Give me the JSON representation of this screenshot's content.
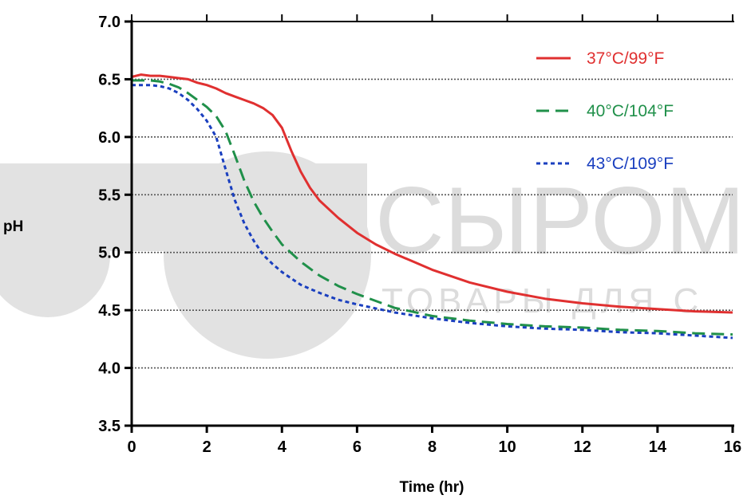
{
  "watermark": {
    "big_text": "СЫРОМ",
    "small_text": "ТОВАРЫ ДЛЯ С"
  },
  "chart_data": {
    "type": "line",
    "title": "",
    "xlabel": "Time (hr)",
    "ylabel": "pH",
    "xlim": [
      0,
      16
    ],
    "ylim": [
      3.5,
      7.0
    ],
    "x_ticks": [
      0,
      2,
      4,
      6,
      8,
      10,
      12,
      14,
      16
    ],
    "y_ticks": [
      3.5,
      4.0,
      4.5,
      5.0,
      5.5,
      6.0,
      6.5,
      7.0
    ],
    "x_tick_labels": [
      "0",
      "2",
      "4",
      "6",
      "8",
      "10",
      "12",
      "14",
      "16"
    ],
    "y_tick_labels": [
      "3.5",
      "4.0",
      "4.5",
      "5.0",
      "5.5",
      "6.0",
      "6.5",
      "7.0"
    ],
    "grid": "horizontal dotted",
    "legend_position": "top-right",
    "series": [
      {
        "name": "37°C/99°F",
        "color": "#e03030",
        "dash": "solid",
        "x": [
          0,
          0.25,
          0.5,
          0.75,
          1.0,
          1.25,
          1.5,
          1.75,
          2.0,
          2.25,
          2.5,
          2.75,
          3.0,
          3.25,
          3.5,
          3.75,
          4.0,
          4.25,
          4.5,
          4.75,
          5.0,
          5.5,
          6.0,
          6.5,
          7.0,
          7.5,
          8.0,
          9.0,
          10.0,
          11.0,
          12.0,
          13.0,
          14.0,
          15.0,
          16.0
        ],
        "y": [
          6.52,
          6.54,
          6.53,
          6.53,
          6.52,
          6.51,
          6.5,
          6.47,
          6.45,
          6.42,
          6.38,
          6.35,
          6.32,
          6.29,
          6.25,
          6.19,
          6.08,
          5.88,
          5.7,
          5.56,
          5.45,
          5.3,
          5.17,
          5.07,
          4.99,
          4.92,
          4.85,
          4.74,
          4.66,
          4.6,
          4.56,
          4.53,
          4.51,
          4.49,
          4.48
        ]
      },
      {
        "name": "40°C/104°F",
        "color": "#20904a",
        "dash": "dashed",
        "x": [
          0,
          0.25,
          0.5,
          0.75,
          1.0,
          1.25,
          1.5,
          1.75,
          2.0,
          2.25,
          2.5,
          2.75,
          3.0,
          3.25,
          3.5,
          3.75,
          4.0,
          4.5,
          5.0,
          5.5,
          6.0,
          7.0,
          8.0,
          9.0,
          10.0,
          11.0,
          12.0,
          13.0,
          14.0,
          15.0,
          16.0
        ],
        "y": [
          6.49,
          6.49,
          6.49,
          6.48,
          6.46,
          6.43,
          6.38,
          6.32,
          6.26,
          6.18,
          6.05,
          5.84,
          5.62,
          5.44,
          5.3,
          5.18,
          5.07,
          4.92,
          4.8,
          4.71,
          4.64,
          4.52,
          4.45,
          4.41,
          4.38,
          4.36,
          4.35,
          4.33,
          4.32,
          4.3,
          4.29
        ]
      },
      {
        "name": "43°C/109°F",
        "color": "#1a3fbf",
        "dash": "dotted",
        "x": [
          0,
          0.25,
          0.5,
          0.75,
          1.0,
          1.25,
          1.5,
          1.75,
          2.0,
          2.25,
          2.5,
          2.75,
          3.0,
          3.25,
          3.5,
          3.75,
          4.0,
          4.5,
          5.0,
          5.5,
          6.0,
          7.0,
          8.0,
          9.0,
          10.0,
          11.0,
          12.0,
          13.0,
          14.0,
          15.0,
          16.0
        ],
        "y": [
          6.45,
          6.45,
          6.45,
          6.44,
          6.42,
          6.38,
          6.32,
          6.24,
          6.14,
          6.0,
          5.72,
          5.45,
          5.25,
          5.1,
          4.98,
          4.9,
          4.83,
          4.72,
          4.65,
          4.59,
          4.55,
          4.48,
          4.43,
          4.39,
          4.36,
          4.34,
          4.33,
          4.31,
          4.3,
          4.28,
          4.26
        ]
      }
    ]
  }
}
